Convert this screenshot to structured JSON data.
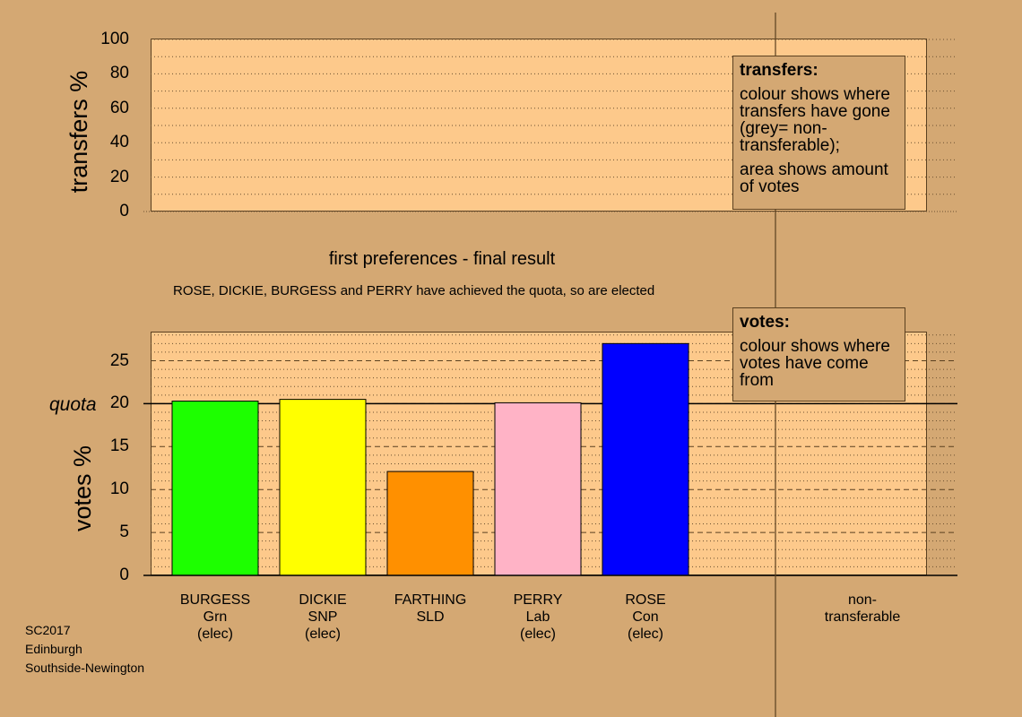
{
  "chart_data": [
    {
      "type": "bar",
      "title": "",
      "xlabel": "",
      "ylabel": "transfers %",
      "ylim": [
        0,
        100
      ],
      "yticks": [
        0,
        20,
        40,
        60,
        80,
        100
      ],
      "categories": [],
      "values": [],
      "legend": {
        "title": "transfers:",
        "lines": [
          "colour shows where transfers have gone (grey= non-transferable);",
          "area shows amount of votes"
        ],
        "position": "top-right"
      }
    },
    {
      "type": "bar",
      "title": "first preferences - final result",
      "subtitle": "ROSE, DICKIE, BURGESS and PERRY have achieved the quota, so are elected",
      "ylabel": "votes %",
      "ylim": [
        0,
        28.5
      ],
      "yticks": [
        0,
        5,
        10,
        15,
        20,
        25
      ],
      "quota": {
        "label": "quota",
        "value": 20
      },
      "categories": [
        "BURGESS",
        "DICKIE",
        "FARTHING",
        "PERRY",
        "ROSE"
      ],
      "values": [
        20.3,
        20.5,
        12.1,
        20.1,
        27.0
      ],
      "colors": [
        "#1dff00",
        "#ffff00",
        "#ff9000",
        "#ffb3c6",
        "#0000ff"
      ],
      "candidate_labels": [
        {
          "name": "BURGESS",
          "party": "Grn",
          "status": "(elec)"
        },
        {
          "name": "DICKIE",
          "party": "SNP",
          "status": "(elec)"
        },
        {
          "name": "FARTHING",
          "party": "SLD",
          "status": ""
        },
        {
          "name": "PERRY",
          "party": "Lab",
          "status": "(elec)"
        },
        {
          "name": "ROSE",
          "party": "Con",
          "status": "(elec)"
        }
      ],
      "extra_category": {
        "line1": "non-",
        "line2": "transferable"
      },
      "legend": {
        "title": "votes:",
        "lines": [
          "colour shows where votes have come from"
        ],
        "position": "top-right"
      }
    }
  ],
  "info": [
    "SC2017",
    "Edinburgh",
    "Southside-Newington"
  ]
}
